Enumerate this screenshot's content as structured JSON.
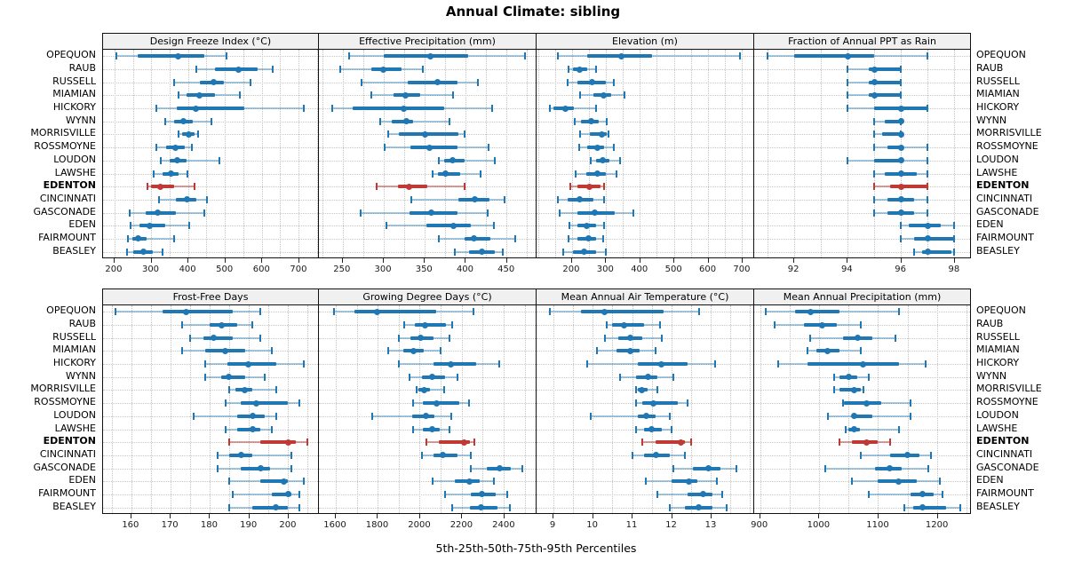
{
  "chart_data": {
    "type": "dotplot-percentiles-trellis",
    "title": "Annual Climate: sibling",
    "caption": "5th-25th-50th-75th-95th Percentiles",
    "percentile_labels": [
      "5th",
      "25th",
      "50th",
      "75th",
      "95th"
    ],
    "legend_position": "none",
    "grid": "dotted",
    "highlight": "EDENTON",
    "colors": {
      "normal": "#1f77b4",
      "normal_light": "rgba(31,119,180,0.40)",
      "highlight": "#bf3a34",
      "highlight_light": "rgba(191,58,52,0.50)",
      "strip_bg": "#f0f0f0",
      "gridline": "#c7c7c7"
    },
    "locations": [
      "OPEQUON",
      "RAUB",
      "RUSSELL",
      "MIAMIAN",
      "HICKORY",
      "WYNN",
      "MORRISVILLE",
      "ROSSMOYNE",
      "LOUDON",
      "LAWSHE",
      "EDENTON",
      "CINCINNATI",
      "GASCONADE",
      "EDEN",
      "FAIRMOUNT",
      "BEASLEY"
    ],
    "panels": [
      {
        "title": "Design Freeze Index (°C)",
        "ticks": [
          200,
          300,
          400,
          500,
          600,
          700
        ],
        "tick_labels": [
          "200",
          "300",
          "400",
          "500",
          "600",
          "700"
        ],
        "xlim": [
          169,
          753
        ],
        "values": [
          [
            205,
            263,
            373,
            443,
            504
          ],
          [
            423,
            473,
            537,
            588,
            630
          ],
          [
            361,
            433,
            470,
            498,
            569
          ],
          [
            374,
            395,
            430,
            473,
            540
          ],
          [
            313,
            370,
            420,
            552,
            715
          ],
          [
            339,
            362,
            387,
            413,
            463
          ],
          [
            374,
            383,
            401,
            417,
            428
          ],
          [
            314,
            341,
            366,
            390,
            411
          ],
          [
            326,
            349,
            371,
            395,
            485
          ],
          [
            306,
            330,
            353,
            375,
            398
          ],
          [
            289,
            300,
            324,
            363,
            417
          ],
          [
            321,
            367,
            398,
            423,
            451
          ],
          [
            241,
            284,
            317,
            367,
            444
          ],
          [
            244,
            267,
            295,
            337,
            403
          ],
          [
            237,
            248,
            264,
            288,
            362
          ],
          [
            235,
            252,
            279,
            304,
            330
          ]
        ]
      },
      {
        "title": "Effective Precipitation (mm)",
        "ticks": [
          250,
          300,
          350,
          400,
          450
        ],
        "tick_labels": [
          "250",
          "300",
          "350",
          "400",
          "450"
        ],
        "xlim": [
          221,
          486
        ],
        "values": [
          [
            258,
            300,
            357,
            403,
            473
          ],
          [
            247,
            285,
            300,
            322,
            348
          ],
          [
            273,
            330,
            366,
            390,
            415
          ],
          [
            285,
            312,
            327,
            345,
            385
          ],
          [
            237,
            262,
            325,
            374,
            433
          ],
          [
            296,
            310,
            328,
            336,
            381
          ],
          [
            306,
            319,
            351,
            392,
            399
          ],
          [
            301,
            333,
            356,
            390,
            428
          ],
          [
            368,
            374,
            384,
            399,
            436
          ],
          [
            360,
            366,
            376,
            394,
            419
          ],
          [
            292,
            318,
            331,
            354,
            399
          ],
          [
            334,
            392,
            412,
            429,
            448
          ],
          [
            272,
            332,
            358,
            390,
            427
          ],
          [
            304,
            352,
            385,
            407,
            435
          ],
          [
            368,
            399,
            410,
            431,
            461
          ],
          [
            387,
            405,
            420,
            436,
            446
          ]
        ]
      },
      {
        "title": "Elevation (m)",
        "ticks": [
          200,
          300,
          400,
          500,
          600,
          700
        ],
        "tick_labels": [
          "200",
          "300",
          "400",
          "500",
          "600",
          "700"
        ],
        "xlim": [
          96,
          734
        ],
        "values": [
          [
            159,
            245,
            345,
            435,
            694
          ],
          [
            190,
            202,
            224,
            245,
            271
          ],
          [
            187,
            217,
            259,
            300,
            323
          ],
          [
            223,
            263,
            293,
            316,
            355
          ],
          [
            135,
            146,
            181,
            207,
            272
          ],
          [
            209,
            228,
            257,
            278,
            302
          ],
          [
            224,
            252,
            287,
            302,
            307
          ],
          [
            222,
            245,
            274,
            294,
            323
          ],
          [
            255,
            270,
            291,
            311,
            343
          ],
          [
            211,
            242,
            276,
            300,
            332
          ],
          [
            196,
            217,
            252,
            285,
            296
          ],
          [
            159,
            187,
            222,
            263,
            296
          ],
          [
            165,
            215,
            268,
            326,
            380
          ],
          [
            193,
            217,
            245,
            270,
            296
          ],
          [
            189,
            217,
            248,
            270,
            291
          ],
          [
            174,
            203,
            237,
            270,
            300
          ]
        ]
      },
      {
        "title": "Fraction of Annual PPT as Rain",
        "ticks": [
          92,
          94,
          96,
          98
        ],
        "tick_labels": [
          "92",
          "94",
          "96",
          "98"
        ],
        "xlim": [
          90.5,
          98.6
        ],
        "values": [
          [
            91,
            92,
            94,
            95,
            97
          ],
          [
            94,
            94.8,
            95,
            96,
            96
          ],
          [
            94,
            94.8,
            95,
            96,
            96
          ],
          [
            94,
            94.8,
            95,
            96,
            96
          ],
          [
            94,
            95,
            96,
            97,
            97
          ],
          [
            95,
            95.4,
            96,
            96,
            96
          ],
          [
            95,
            95.3,
            96,
            96,
            96
          ],
          [
            95,
            95.5,
            96,
            96,
            97
          ],
          [
            94,
            95,
            96,
            96,
            97
          ],
          [
            95,
            95.4,
            96,
            96.6,
            97
          ],
          [
            95,
            95.6,
            96,
            97,
            97
          ],
          [
            95,
            95.5,
            96,
            96.5,
            97
          ],
          [
            95,
            95.5,
            96,
            96.5,
            97
          ],
          [
            96,
            96.3,
            97,
            97.5,
            98
          ],
          [
            96,
            96.5,
            97,
            98,
            98
          ],
          [
            96.5,
            96.8,
            97,
            97.9,
            98
          ]
        ]
      },
      {
        "title": "Frost-Free Days",
        "ticks": [
          160,
          170,
          180,
          190,
          200
        ],
        "tick_labels": [
          "160",
          "170",
          "180",
          "190",
          "200"
        ],
        "xlim": [
          152.8,
          207.7
        ],
        "values": [
          [
            156,
            168,
            174,
            186,
            193
          ],
          [
            173,
            180,
            183,
            187,
            191
          ],
          [
            175,
            178.5,
            181,
            186,
            193
          ],
          [
            173,
            179,
            184,
            189,
            196
          ],
          [
            179,
            184.5,
            190,
            197,
            204
          ],
          [
            179,
            183,
            185,
            189,
            194
          ],
          [
            185,
            186.5,
            189,
            191,
            197
          ],
          [
            184,
            188,
            192,
            200,
            203
          ],
          [
            176,
            187,
            191,
            194,
            197
          ],
          [
            184,
            187,
            191,
            193,
            196
          ],
          [
            185,
            193,
            200,
            202,
            205
          ],
          [
            182,
            185,
            188,
            191,
            201
          ],
          [
            182,
            188,
            193,
            195.5,
            201
          ],
          [
            185,
            193,
            199,
            200,
            204
          ],
          [
            186,
            196,
            200,
            201,
            203
          ],
          [
            185,
            191,
            197,
            200,
            203
          ]
        ]
      },
      {
        "title": "Growing Degree Days (°C)",
        "ticks": [
          1600,
          1800,
          2000,
          2200,
          2400
        ],
        "tick_labels": [
          "1600",
          "1800",
          "2000",
          "2200",
          "2400"
        ],
        "xlim": [
          1520,
          2552
        ],
        "values": [
          [
            1590,
            1690,
            1795,
            2080,
            2255
          ],
          [
            1925,
            1975,
            2025,
            2125,
            2155
          ],
          [
            1900,
            1955,
            2005,
            2065,
            2140
          ],
          [
            1850,
            1920,
            1970,
            2020,
            2100
          ],
          [
            1900,
            2065,
            2150,
            2270,
            2380
          ],
          [
            1950,
            2010,
            2060,
            2120,
            2180
          ],
          [
            1985,
            1995,
            2020,
            2050,
            2115
          ],
          [
            1970,
            2015,
            2080,
            2190,
            2235
          ],
          [
            1775,
            1965,
            2030,
            2070,
            2150
          ],
          [
            1970,
            2015,
            2060,
            2095,
            2140
          ],
          [
            2030,
            2090,
            2210,
            2240,
            2260
          ],
          [
            2010,
            2065,
            2110,
            2180,
            2245
          ],
          [
            2245,
            2320,
            2380,
            2435,
            2490
          ],
          [
            2060,
            2165,
            2235,
            2285,
            2355
          ],
          [
            2120,
            2245,
            2295,
            2360,
            2415
          ],
          [
            2155,
            2240,
            2290,
            2370,
            2430
          ]
        ]
      },
      {
        "title": "Mean Annual Air Temperature (°C)",
        "ticks": [
          9,
          10,
          11,
          12,
          13
        ],
        "tick_labels": [
          "9",
          "10",
          "11",
          "12",
          "13"
        ],
        "xlim": [
          8.57,
          14.08
        ],
        "values": [
          [
            8.9,
            9.7,
            10.3,
            11.8,
            12.7
          ],
          [
            10.35,
            10.5,
            10.8,
            11.3,
            11.7
          ],
          [
            10.3,
            10.65,
            10.95,
            11.25,
            11.75
          ],
          [
            10.1,
            10.6,
            10.95,
            11.2,
            11.6
          ],
          [
            9.85,
            11.15,
            11.75,
            12.4,
            13.1
          ],
          [
            10.7,
            11.1,
            11.4,
            11.65,
            12.05
          ],
          [
            11.1,
            11.15,
            11.25,
            11.4,
            11.65
          ],
          [
            11.1,
            11.25,
            11.55,
            12.15,
            12.4
          ],
          [
            9.95,
            11.15,
            11.35,
            11.6,
            11.95
          ],
          [
            11.1,
            11.3,
            11.5,
            11.75,
            12.0
          ],
          [
            11.25,
            11.6,
            12.25,
            12.35,
            12.5
          ],
          [
            11.0,
            11.3,
            11.6,
            11.95,
            12.35
          ],
          [
            12.05,
            12.55,
            12.95,
            13.25,
            13.65
          ],
          [
            11.35,
            12.0,
            12.45,
            12.65,
            13.15
          ],
          [
            11.65,
            12.4,
            12.8,
            13.05,
            13.3
          ],
          [
            11.95,
            12.35,
            12.7,
            13.05,
            13.4
          ]
        ]
      },
      {
        "title": "Mean Annual Precipitation (mm)",
        "ticks": [
          900,
          1000,
          1100,
          1200
        ],
        "tick_labels": [
          "900",
          "1000",
          "1100",
          "1200"
        ],
        "xlim": [
          890,
          1256
        ],
        "values": [
          [
            910,
            960,
            985,
            1035,
            1135
          ],
          [
            925,
            975,
            1005,
            1030,
            1070
          ],
          [
            985,
            1040,
            1065,
            1090,
            1130
          ],
          [
            980,
            995,
            1015,
            1035,
            1070
          ],
          [
            930,
            980,
            1075,
            1135,
            1180
          ],
          [
            1025,
            1035,
            1050,
            1065,
            1085
          ],
          [
            1025,
            1035,
            1060,
            1070,
            1075
          ],
          [
            1040,
            1042,
            1080,
            1105,
            1155
          ],
          [
            1015,
            1055,
            1060,
            1090,
            1155
          ],
          [
            1045,
            1050,
            1060,
            1070,
            1135
          ],
          [
            1035,
            1055,
            1080,
            1100,
            1120
          ],
          [
            1070,
            1120,
            1150,
            1170,
            1190
          ],
          [
            1010,
            1095,
            1120,
            1140,
            1185
          ],
          [
            1055,
            1100,
            1135,
            1165,
            1205
          ],
          [
            1085,
            1155,
            1175,
            1195,
            1210
          ],
          [
            1145,
            1160,
            1175,
            1215,
            1240
          ]
        ]
      }
    ]
  }
}
